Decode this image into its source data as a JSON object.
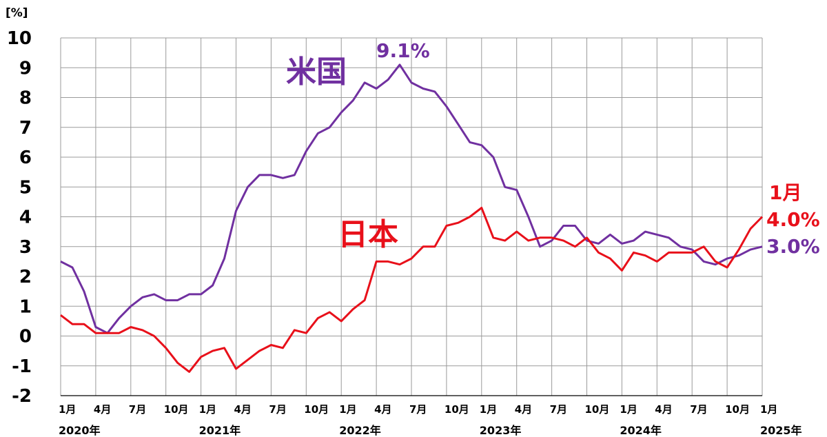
{
  "chart_data": {
    "type": "line",
    "unit_label": "[%]",
    "ylim": [
      -2,
      10
    ],
    "yticks": [
      "10",
      "9",
      "8",
      "7",
      "6",
      "5",
      "4",
      "3",
      "2",
      "1",
      "0",
      "-1",
      "-2"
    ],
    "x_tick_labels": [
      "1月",
      "4月",
      "7月",
      "10月",
      "1月",
      "4月",
      "7月",
      "10月",
      "1月",
      "4月",
      "7月",
      "10月",
      "1月",
      "4月",
      "7月",
      "10月",
      "1月",
      "4月",
      "7月",
      "10月",
      "1月"
    ],
    "year_labels": [
      "2020年",
      "2021年",
      "2022年",
      "2023年",
      "2024年",
      "2025年"
    ],
    "grid": true,
    "series": [
      {
        "name": "米国",
        "color": "#7030A0",
        "values": [
          2.5,
          2.3,
          1.5,
          0.3,
          0.1,
          0.6,
          1.0,
          1.3,
          1.4,
          1.2,
          1.2,
          1.4,
          1.4,
          1.7,
          2.6,
          4.2,
          5.0,
          5.4,
          5.4,
          5.3,
          5.4,
          6.2,
          6.8,
          7.0,
          7.5,
          7.9,
          8.5,
          8.3,
          8.6,
          9.1,
          8.5,
          8.3,
          8.2,
          7.7,
          7.1,
          6.5,
          6.4,
          6.0,
          5.0,
          4.9,
          4.0,
          3.0,
          3.2,
          3.7,
          3.7,
          3.2,
          3.1,
          3.4,
          3.1,
          3.2,
          3.5,
          3.4,
          3.3,
          3.0,
          2.9,
          2.5,
          2.4,
          2.6,
          2.7,
          2.9,
          3.0
        ]
      },
      {
        "name": "日本",
        "color": "#E8101A",
        "values": [
          0.7,
          0.4,
          0.4,
          0.1,
          0.1,
          0.1,
          0.3,
          0.2,
          0.0,
          -0.4,
          -0.9,
          -1.2,
          -0.7,
          -0.5,
          -0.4,
          -1.1,
          -0.8,
          -0.5,
          -0.3,
          -0.4,
          0.2,
          0.1,
          0.6,
          0.8,
          0.5,
          0.9,
          1.2,
          2.5,
          2.5,
          2.4,
          2.6,
          3.0,
          3.0,
          3.7,
          3.8,
          4.0,
          4.3,
          3.3,
          3.2,
          3.5,
          3.2,
          3.3,
          3.3,
          3.2,
          3.0,
          3.3,
          2.8,
          2.6,
          2.2,
          2.8,
          2.7,
          2.5,
          2.8,
          2.8,
          2.8,
          3.0,
          2.5,
          2.3,
          2.9,
          3.6,
          4.0
        ]
      }
    ],
    "annotations": {
      "us_peak": "9.1%",
      "jp_last_month": "1月",
      "jp_last": "4.0%",
      "us_last": "3.0%"
    }
  }
}
